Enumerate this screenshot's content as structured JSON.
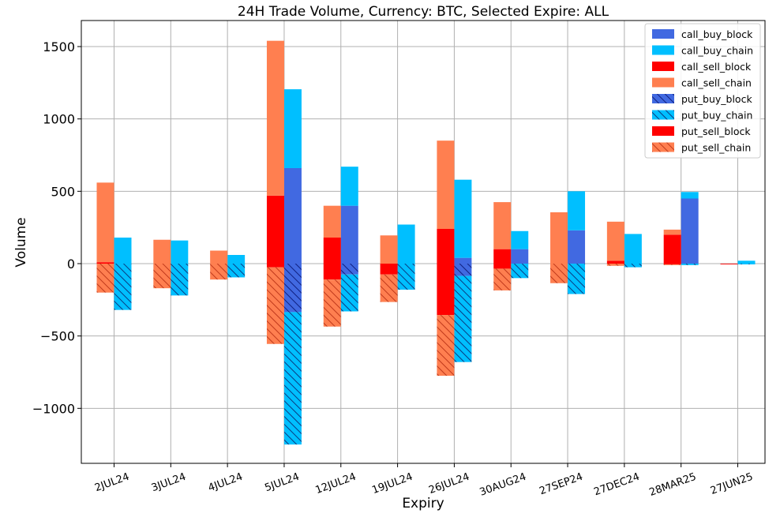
{
  "chart_data": {
    "type": "bar",
    "title": "24H Trade Volume, Currency: BTC, Selected Expire: ALL",
    "xlabel": "Expiry",
    "ylabel": "Volume",
    "ylim": [
      -1380,
      1680
    ],
    "yticks": [
      -1000,
      -500,
      0,
      500,
      1000,
      1500
    ],
    "ytick_labels": [
      "−1000",
      "−500",
      "0",
      "500",
      "1000",
      "1500"
    ],
    "grid": true,
    "legend_position": "top-right",
    "categories": [
      "2JUL24",
      "3JUL24",
      "4JUL24",
      "5JUL24",
      "12JUL24",
      "19JUL24",
      "26JUL24",
      "30AUG24",
      "27SEP24",
      "27DEC24",
      "28MAR25",
      "27JUN25"
    ],
    "series": [
      {
        "name": "call_buy_block",
        "group": "buy",
        "sign": 1,
        "color": "#4169e1",
        "hatch": false,
        "values": [
          0,
          0,
          0,
          660,
          400,
          0,
          40,
          100,
          230,
          0,
          450,
          0
        ]
      },
      {
        "name": "call_buy_chain",
        "group": "buy",
        "sign": 1,
        "color": "#00bfff",
        "hatch": false,
        "values": [
          180,
          160,
          60,
          545,
          270,
          270,
          540,
          125,
          270,
          205,
          45,
          20
        ]
      },
      {
        "name": "call_sell_block",
        "group": "sell",
        "sign": 1,
        "color": "#ff0000",
        "hatch": false,
        "values": [
          10,
          0,
          0,
          470,
          180,
          0,
          240,
          100,
          0,
          20,
          200,
          0
        ]
      },
      {
        "name": "call_sell_chain",
        "group": "sell",
        "sign": 1,
        "color": "#ff7f50",
        "hatch": false,
        "values": [
          550,
          165,
          90,
          1070,
          220,
          195,
          610,
          325,
          355,
          270,
          35,
          0
        ]
      },
      {
        "name": "put_buy_block",
        "group": "buy",
        "sign": -1,
        "color": "#4169e1",
        "hatch": true,
        "values": [
          0,
          0,
          0,
          335,
          75,
          0,
          85,
          0,
          0,
          0,
          0,
          0
        ]
      },
      {
        "name": "put_buy_chain",
        "group": "buy",
        "sign": -1,
        "color": "#00bfff",
        "hatch": true,
        "values": [
          320,
          220,
          95,
          915,
          255,
          180,
          595,
          100,
          210,
          25,
          10,
          5
        ]
      },
      {
        "name": "put_sell_block",
        "group": "sell",
        "sign": -1,
        "color": "#ff0000",
        "hatch": false,
        "values": [
          0,
          0,
          0,
          25,
          110,
          75,
          355,
          35,
          0,
          0,
          5,
          5
        ]
      },
      {
        "name": "put_sell_chain",
        "group": "sell",
        "sign": -1,
        "color": "#ff7f50",
        "hatch": true,
        "values": [
          200,
          170,
          110,
          530,
          325,
          190,
          420,
          150,
          135,
          15,
          5,
          0
        ]
      }
    ]
  }
}
